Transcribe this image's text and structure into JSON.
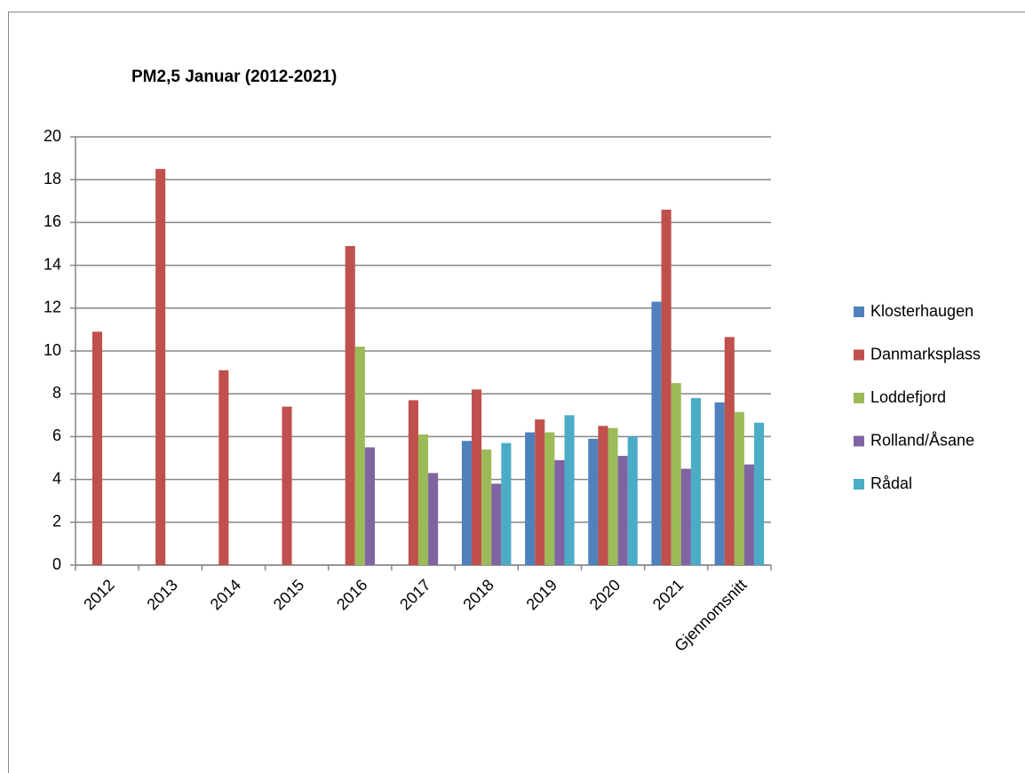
{
  "chart_data": {
    "type": "bar",
    "title": "PM2,5 Januar (2012-2021)",
    "categories": [
      "2012",
      "2013",
      "2014",
      "2015",
      "2016",
      "2017",
      "2018",
      "2019",
      "2020",
      "2021",
      "Gjennomsnitt"
    ],
    "series": [
      {
        "name": "Klosterhaugen",
        "color": "#4f81bd",
        "values": [
          null,
          null,
          null,
          null,
          null,
          null,
          5.8,
          6.2,
          5.9,
          12.3,
          7.6
        ]
      },
      {
        "name": "Danmarksplass",
        "color": "#c0504d",
        "values": [
          10.9,
          18.5,
          9.1,
          7.4,
          14.9,
          7.7,
          8.2,
          6.8,
          6.5,
          16.6,
          10.65
        ]
      },
      {
        "name": "Loddefjord",
        "color": "#9bbb59",
        "values": [
          null,
          null,
          null,
          null,
          10.2,
          6.1,
          5.4,
          6.2,
          6.4,
          8.5,
          7.15
        ]
      },
      {
        "name": "Rolland/Åsane",
        "color": "#8064a2",
        "values": [
          null,
          null,
          null,
          null,
          5.5,
          4.3,
          3.8,
          4.9,
          5.1,
          4.5,
          4.7
        ]
      },
      {
        "name": "Rådal",
        "color": "#4bacc6",
        "values": [
          null,
          null,
          null,
          null,
          null,
          null,
          5.7,
          7.0,
          6.0,
          7.8,
          6.65
        ]
      }
    ],
    "ylim": [
      0,
      20
    ],
    "yticks": [
      0,
      2,
      4,
      6,
      8,
      10,
      12,
      14,
      16,
      18,
      20
    ],
    "grid": true,
    "legend": "right"
  }
}
